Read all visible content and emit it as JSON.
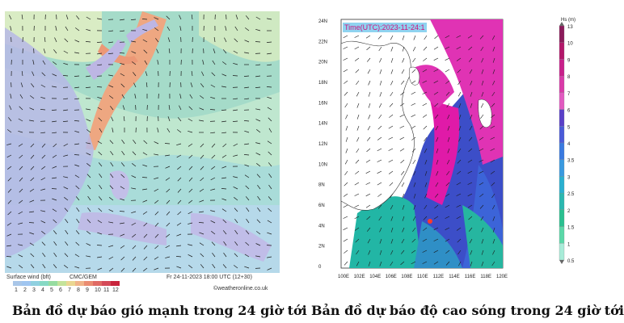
{
  "left": {
    "legend_title": "Surface wind (bft)",
    "legend_source": "CMC/GEM",
    "legend_time": "Fr 24-11-2023 18:00 UTC (12+30)",
    "legend_site": "©weatheronline.co.uk",
    "scale": [
      "1",
      "2",
      "3",
      "4",
      "5",
      "6",
      "7",
      "8",
      "9",
      "10",
      "11",
      "12"
    ],
    "scale_colors": [
      "#a9c6e8",
      "#9fc5f0",
      "#8fd0e0",
      "#86d9c4",
      "#96dca0",
      "#c4e39a",
      "#ead792",
      "#f0b48a",
      "#ea8c72",
      "#e06a64",
      "#d44a58",
      "#c8243c"
    ]
  },
  "right": {
    "time_label": "Time(UTC):2023-11-24:1",
    "lat_labels": [
      "24N",
      "22N",
      "20N",
      "18N",
      "16N",
      "14N",
      "12N",
      "10N",
      "8N",
      "6N",
      "4N",
      "2N",
      "0"
    ],
    "lon_labels": [
      "100E",
      "102E",
      "104E",
      "106E",
      "108E",
      "110E",
      "112E",
      "114E",
      "116E",
      "118E",
      "120E"
    ],
    "colorbar_title": "Hs (m)",
    "colorbar_ticks": [
      "13",
      "10",
      "9",
      "8",
      "7",
      "6",
      "5",
      "4",
      "3.5",
      "3",
      "2.5",
      "2",
      "1.5",
      "1",
      "0.5"
    ]
  },
  "captions": {
    "left": "Bản đồ dự báo gió mạnh trong 24 giờ tới",
    "right": "Bản đồ dự báo độ cao sóng trong 24 giờ tới"
  }
}
